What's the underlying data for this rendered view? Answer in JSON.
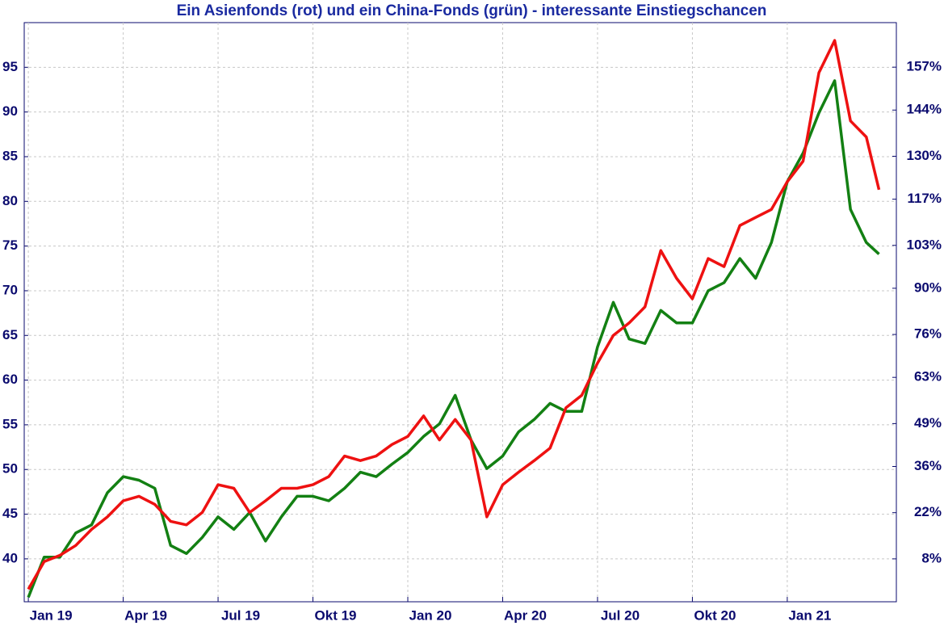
{
  "chart_data": {
    "type": "line",
    "title": "Ein Asienfonds (rot) und ein China-Fonds (grün) - interessante Einstiegschancen",
    "x": [
      0,
      0.5,
      1,
      1.5,
      2,
      2.5,
      3,
      3.5,
      4,
      4.5,
      5,
      5.5,
      6,
      6.5,
      7,
      7.5,
      8,
      8.5,
      9,
      9.5,
      10,
      10.5,
      11,
      11.5,
      12,
      12.5,
      13,
      13.5,
      14,
      14.5,
      15,
      15.5,
      16,
      16.5,
      17,
      17.5,
      18,
      18.5,
      19,
      19.5,
      20,
      20.5,
      21,
      21.5,
      22,
      22.5,
      23,
      23.5,
      24,
      24.5,
      25,
      25.5,
      26,
      26.5,
      26.9
    ],
    "series": [
      {
        "name": "Asienfonds",
        "color": "#ee1111",
        "values": [
          36.6,
          39.7,
          40.4,
          41.5,
          43.3,
          44.7,
          46.5,
          47.0,
          46.1,
          44.2,
          43.8,
          45.2,
          48.3,
          47.9,
          45.2,
          46.5,
          47.9,
          47.9,
          48.3,
          49.2,
          51.5,
          51.0,
          51.5,
          52.8,
          53.7,
          56.0,
          53.3,
          55.6,
          53.3,
          44.7,
          48.3,
          49.7,
          51.0,
          52.4,
          56.9,
          58.3,
          61.9,
          65.0,
          66.4,
          68.2,
          74.5,
          71.4,
          69.1,
          73.6,
          72.7,
          77.3,
          78.2,
          79.1,
          82.2,
          84.5,
          94.4,
          98.0,
          89.0,
          87.2,
          81.3
        ]
      },
      {
        "name": "China-Fonds",
        "color": "#138013",
        "values": [
          35.7,
          40.2,
          40.2,
          42.9,
          43.8,
          47.4,
          49.2,
          48.8,
          47.9,
          41.5,
          40.6,
          42.4,
          44.7,
          43.3,
          45.2,
          42.0,
          44.7,
          47.0,
          47.0,
          46.5,
          47.9,
          49.7,
          49.2,
          50.6,
          51.9,
          53.7,
          55.1,
          58.3,
          53.3,
          50.1,
          51.5,
          54.2,
          55.6,
          57.4,
          56.5,
          56.5,
          63.7,
          68.7,
          64.6,
          64.1,
          67.8,
          66.4,
          66.4,
          70.0,
          70.9,
          73.6,
          71.4,
          75.4,
          82.2,
          85.4,
          89.9,
          93.5,
          79.1,
          75.4,
          74.1
        ]
      }
    ],
    "xlim": [
      -0.13,
      27.45
    ],
    "xticks": [
      {
        "value": 0,
        "label": "Jan 19"
      },
      {
        "value": 3,
        "label": "Apr 19"
      },
      {
        "value": 6,
        "label": "Jul 19"
      },
      {
        "value": 9,
        "label": "Okt 19"
      },
      {
        "value": 12,
        "label": "Jan 20"
      },
      {
        "value": 15,
        "label": "Apr 20"
      },
      {
        "value": 18,
        "label": "Jul 20"
      },
      {
        "value": 21,
        "label": "Okt 20"
      },
      {
        "value": 24,
        "label": "Jan 21"
      }
    ],
    "ylim": [
      35.2,
      100
    ],
    "yticks": [
      40,
      45,
      50,
      55,
      60,
      65,
      70,
      75,
      80,
      85,
      90,
      95
    ],
    "y2lim": [
      -5,
      170.5
    ],
    "y2ticks": [
      {
        "value": 8,
        "label": "8%"
      },
      {
        "value": 22,
        "label": "22%"
      },
      {
        "value": 36,
        "label": "36%"
      },
      {
        "value": 49,
        "label": "49%"
      },
      {
        "value": 63,
        "label": "63%"
      },
      {
        "value": 76,
        "label": "76%"
      },
      {
        "value": 90,
        "label": "90%"
      },
      {
        "value": 103,
        "label": "103%"
      },
      {
        "value": 117,
        "label": "117%"
      },
      {
        "value": 130,
        "label": "130%"
      },
      {
        "value": 144,
        "label": "144%"
      },
      {
        "value": 157,
        "label": "157%"
      }
    ],
    "grid": true
  }
}
